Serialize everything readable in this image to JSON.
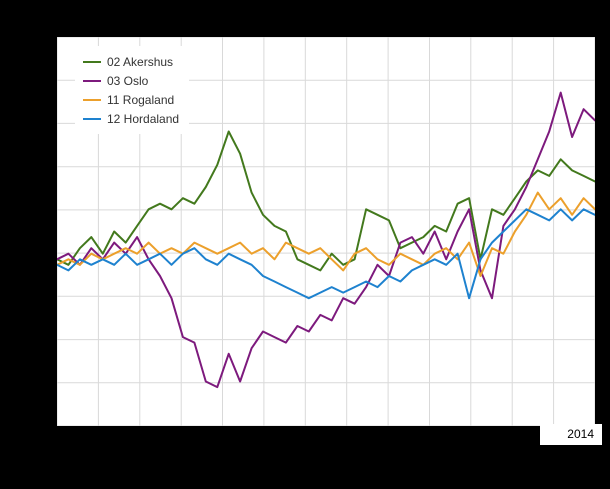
{
  "chart_data": {
    "type": "line",
    "title": "",
    "xlabel": "",
    "ylabel": "",
    "x_last_tick_label": "2014",
    "ylim": [
      85,
      120
    ],
    "grid": {
      "on": true,
      "v_lines": 13,
      "h_lines": 9,
      "color": "#d9d9d9"
    },
    "legend_position": "top-left",
    "background_color": "#000000",
    "plot_background_color": "#ffffff",
    "series": [
      {
        "name": "02 Akershus",
        "color": "#43791d",
        "values": [
          100,
          99.5,
          101,
          102,
          100.5,
          102.5,
          101.5,
          103,
          104.5,
          105,
          104.5,
          105.5,
          105,
          106.5,
          108.5,
          111.5,
          109.5,
          106,
          104,
          103,
          102.5,
          100,
          99.5,
          99,
          100.5,
          99.5,
          100,
          104.5,
          104,
          103.5,
          101,
          101.5,
          102,
          103,
          102.5,
          105,
          105.5,
          100,
          104.5,
          104,
          105.5,
          107,
          108,
          107.5,
          109,
          108,
          107.5,
          107
        ]
      },
      {
        "name": "03 Oslo",
        "color": "#7d1a7d",
        "values": [
          100,
          100.5,
          99.5,
          101,
          100,
          101.5,
          100.5,
          102,
          100,
          98.5,
          96.5,
          93,
          92.5,
          89,
          88.5,
          91.5,
          89,
          92,
          93.5,
          93,
          92.5,
          94,
          93.5,
          95,
          94.5,
          96.5,
          96,
          97.5,
          99.5,
          98.5,
          101.5,
          102,
          100.5,
          102.5,
          100,
          102.5,
          104.5,
          99,
          96.5,
          103,
          104.5,
          106.5,
          109,
          111.5,
          115,
          111,
          113.5,
          112.5
        ]
      },
      {
        "name": "11 Rogaland",
        "color": "#eca02c",
        "values": [
          99.5,
          100,
          99.5,
          100.5,
          100,
          100.5,
          101,
          100.5,
          101.5,
          100.5,
          101,
          100.5,
          101.5,
          101,
          100.5,
          101,
          101.5,
          100.5,
          101,
          100,
          101.5,
          101,
          100.5,
          101,
          100,
          99,
          100.5,
          101,
          100,
          99.5,
          100.5,
          100,
          99.5,
          100.5,
          101,
          100,
          101.5,
          98.5,
          101,
          100.5,
          102.5,
          104,
          106,
          104.5,
          105.5,
          104,
          105.5,
          104.5
        ]
      },
      {
        "name": "12 Hordaland",
        "color": "#1e82cf",
        "values": [
          99.5,
          99,
          100,
          99.5,
          100,
          99.5,
          100.5,
          99.5,
          100,
          100.5,
          99.5,
          100.5,
          101,
          100,
          99.5,
          100.5,
          100,
          99.5,
          98.5,
          98,
          97.5,
          97,
          96.5,
          97,
          97.5,
          97,
          97.5,
          98,
          97.5,
          98.5,
          98,
          99,
          99.5,
          100,
          99.5,
          100.5,
          96.5,
          100,
          101.5,
          102.5,
          103.5,
          104.5,
          104,
          103.5,
          104.5,
          103.5,
          104.5,
          104
        ]
      }
    ]
  }
}
